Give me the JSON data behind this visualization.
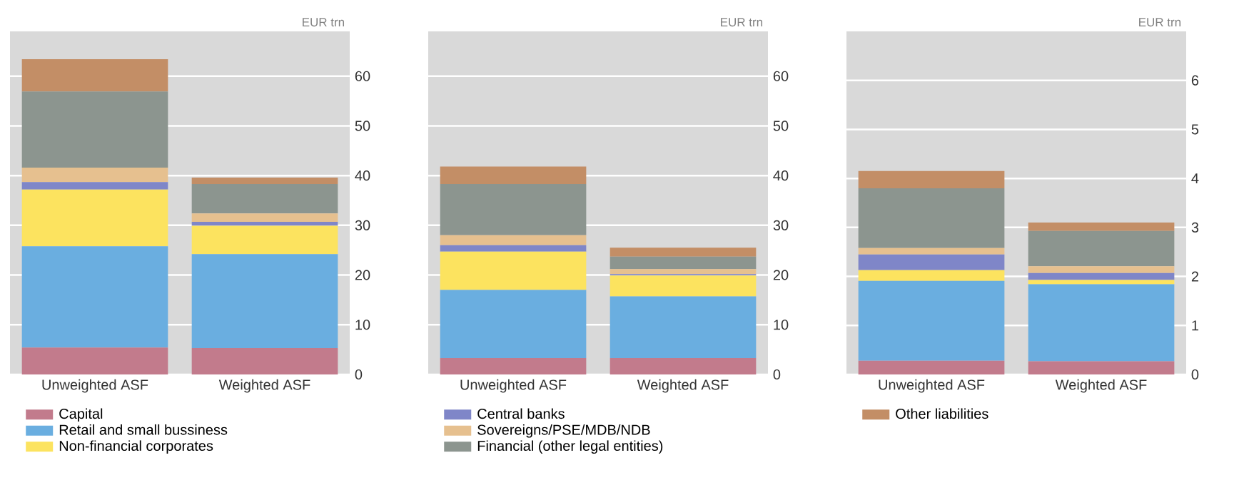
{
  "chart_data": [
    {
      "type": "bar",
      "stacked": true,
      "ylabel": "EUR trn",
      "categories": [
        "Unweighted ASF",
        "Weighted ASF"
      ],
      "ylim": [
        0,
        69
      ],
      "yticks": [
        0,
        10,
        20,
        30,
        40,
        50,
        60
      ],
      "grid": "y",
      "legend": "bottom",
      "series": [
        {
          "name": "Capital",
          "color": "#c27b8c",
          "values": [
            5.4,
            5.3
          ]
        },
        {
          "name": "Retail and small bussiness",
          "color": "#6aaee0",
          "values": [
            20.4,
            18.9
          ]
        },
        {
          "name": "Non-financial corporates",
          "color": "#fce35f",
          "values": [
            11.4,
            5.7
          ]
        },
        {
          "color": "#7f86c8",
          "values": [
            1.5,
            0.8
          ]
        },
        {
          "color": "#e6c08f",
          "values": [
            2.9,
            1.7
          ]
        },
        {
          "color": "#8c958f",
          "values": [
            15.3,
            5.9
          ]
        },
        {
          "color": "#c38e66",
          "values": [
            6.5,
            1.3
          ]
        }
      ]
    },
    {
      "type": "bar",
      "stacked": true,
      "ylabel": "EUR trn",
      "categories": [
        "Unweighted ASF",
        "Weighted ASF"
      ],
      "ylim": [
        0,
        69
      ],
      "yticks": [
        0,
        10,
        20,
        30,
        40,
        50,
        60
      ],
      "grid": "y",
      "legend": "bottom",
      "series": [
        {
          "color": "#c27b8c",
          "values": [
            3.3,
            3.3
          ]
        },
        {
          "color": "#6aaee0",
          "values": [
            13.7,
            12.4
          ]
        },
        {
          "color": "#fce35f",
          "values": [
            7.7,
            4.2
          ]
        },
        {
          "name": "Central banks",
          "color": "#7f86c8",
          "values": [
            1.3,
            0.3
          ]
        },
        {
          "name": "Sovereigns/PSE/MDB/NDB",
          "color": "#e6c08f",
          "values": [
            2.0,
            1.0
          ]
        },
        {
          "name": "Financial (other legal entities)",
          "color": "#8c958f",
          "values": [
            10.3,
            2.5
          ]
        },
        {
          "color": "#c38e66",
          "values": [
            3.5,
            1.8
          ]
        }
      ]
    },
    {
      "type": "bar",
      "stacked": true,
      "ylabel": "EUR trn",
      "categories": [
        "Unweighted ASF",
        "Weighted ASF"
      ],
      "ylim": [
        0,
        7
      ],
      "yticks": [
        0,
        1,
        2,
        3,
        4,
        5,
        6
      ],
      "grid": "y",
      "legend": "bottom",
      "series": [
        {
          "color": "#c27b8c",
          "values": [
            0.28,
            0.27
          ]
        },
        {
          "color": "#6aaee0",
          "values": [
            1.63,
            1.57
          ]
        },
        {
          "color": "#fce35f",
          "values": [
            0.22,
            0.09
          ]
        },
        {
          "color": "#7f86c8",
          "values": [
            0.32,
            0.14
          ]
        },
        {
          "color": "#e6c08f",
          "values": [
            0.13,
            0.14
          ]
        },
        {
          "color": "#8c958f",
          "values": [
            1.22,
            0.72
          ]
        },
        {
          "name": "Other liabilities",
          "color": "#c38e66",
          "values": [
            0.35,
            0.17
          ]
        }
      ]
    }
  ]
}
